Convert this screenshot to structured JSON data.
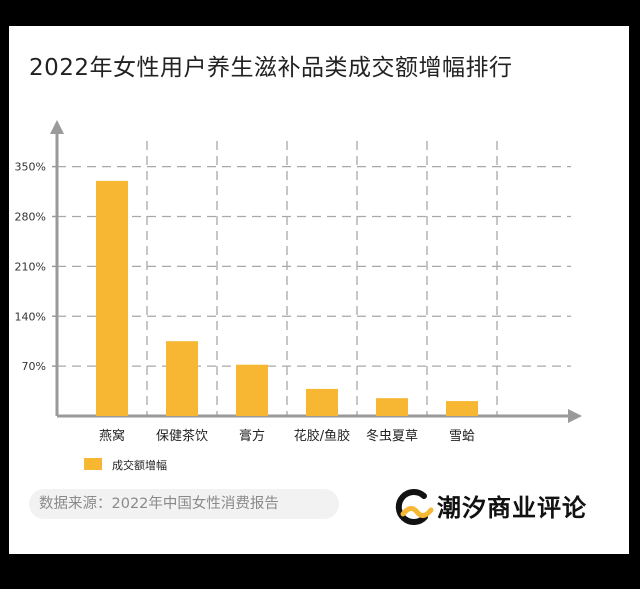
{
  "chart_data": {
    "type": "bar",
    "title": "2022年女性用户养生滋补品类成交额增幅排行",
    "categories": [
      "燕窝",
      "保健茶饮",
      "膏方",
      "花胶/鱼胶",
      "冬虫夏草",
      "雪蛤"
    ],
    "series": [
      {
        "name": "成交额增幅",
        "values": [
          330,
          105,
          72,
          38,
          25,
          21
        ],
        "color": "#f7b733"
      }
    ],
    "yticks": [
      "70%",
      "140%",
      "210%",
      "280%",
      "350%"
    ],
    "ytick_values": [
      70,
      140,
      210,
      280,
      350
    ],
    "ylim": [
      0,
      400
    ],
    "grid": true,
    "legend_position": "bottom-left"
  },
  "footer": {
    "source": "数据来源：2022年中国女性消费报告",
    "brand": "潮汐商业评论"
  }
}
